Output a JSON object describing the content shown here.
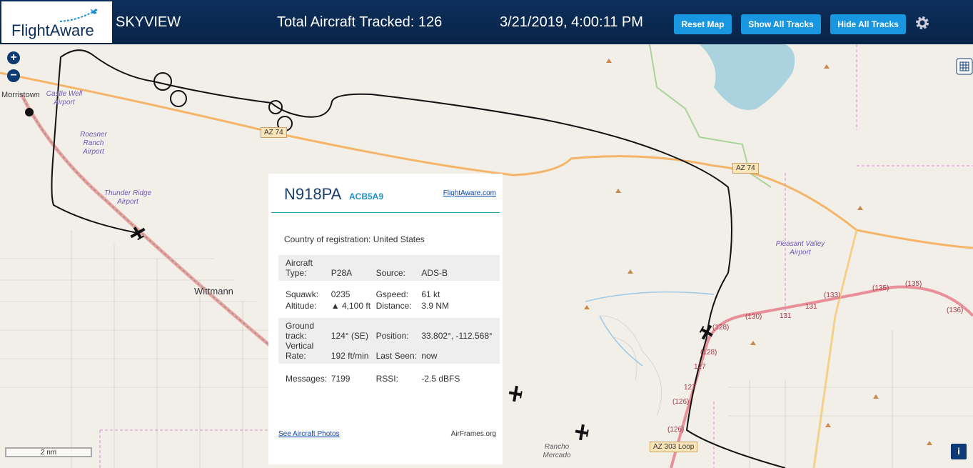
{
  "header": {
    "logo": "FlightAware",
    "title": "SKYVIEW",
    "total_tracked": "Total Aircraft Tracked: 126",
    "timestamp": "3/21/2019, 4:00:11 PM",
    "buttons": [
      "Reset Map",
      "Show All Tracks",
      "Hide All Tracks"
    ]
  },
  "map": {
    "places": [
      "Morristown",
      "Castle Well Airport",
      "Roesner Ranch Airport",
      "Thunder Ridge Airport",
      "Wittmann",
      "Pleasant Valley Airport",
      "Rancho Mercado"
    ],
    "shields": [
      "AZ 74",
      "AZ 74",
      "AZ 303 Loop"
    ],
    "route_numbers": [
      "(128)",
      "(128)",
      "127",
      "127",
      "(126)",
      "(126)",
      "(130)",
      "131",
      "131",
      "(133)",
      "(135)",
      "(135)",
      "(136)"
    ],
    "scale": "2 nm",
    "info": "i"
  },
  "popup": {
    "ident": "N918PA",
    "hex": "ACB5A9",
    "link": "FlightAware.com",
    "country_label": "Country of registration:",
    "country": "United States",
    "groups": [
      [
        [
          {
            "label": "Aircraft Type:",
            "value": "P28A"
          },
          {
            "label": "Source:",
            "value": "ADS-B"
          }
        ]
      ],
      [
        [
          {
            "label": "Squawk:",
            "value": "0235"
          },
          {
            "label": "Gspeed:",
            "value": "61 kt"
          }
        ],
        [
          {
            "label": "Altitude:",
            "value": "▲ 4,100 ft"
          },
          {
            "label": "Distance:",
            "value": "3.9 NM"
          }
        ]
      ],
      [
        [
          {
            "label": "Ground track:",
            "value": "124° (SE)"
          },
          {
            "label": "Position:",
            "value": "33.802°, -112.568°"
          }
        ],
        [
          {
            "label": "Vertical Rate:",
            "value": "192 ft/min"
          },
          {
            "label": "Last Seen:",
            "value": "now"
          }
        ]
      ],
      [
        [
          {
            "label": "Messages:",
            "value": 7199
          },
          {
            "label": "RSSI:",
            "value": "-2.5 dBFS"
          }
        ]
      ]
    ],
    "photos_link": "See Aircraft Photos",
    "airframes_link": "AirFrames.org"
  }
}
